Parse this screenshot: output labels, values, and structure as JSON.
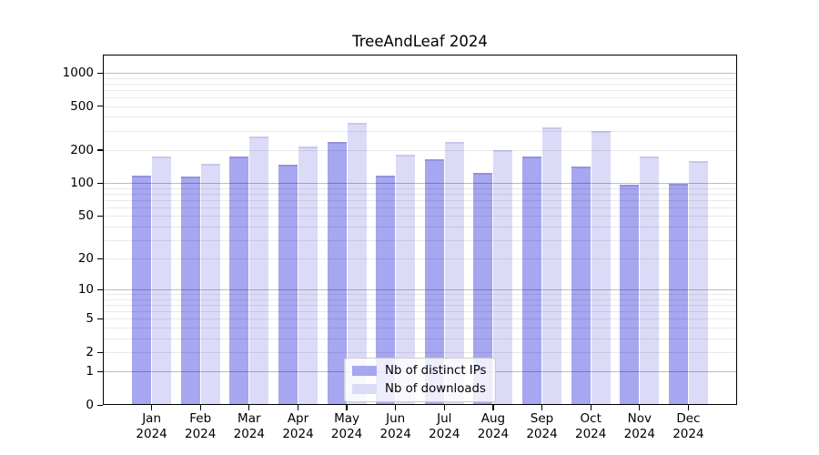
{
  "title": "TreeAndLeaf 2024",
  "chart_data": {
    "type": "bar",
    "title": "TreeAndLeaf 2024",
    "y_scale": "log10(value+1)",
    "grid": true,
    "categories": [
      "Jan",
      "Feb",
      "Mar",
      "Apr",
      "May",
      "Jun",
      "Jul",
      "Aug",
      "Sep",
      "Oct",
      "Nov",
      "Dec"
    ],
    "x_tick_year": "2024",
    "series": [
      {
        "name": "Nb of distinct IPs",
        "color": "#a6a6f1",
        "edge_color": "#9393dc",
        "values": [
          118,
          115,
          173,
          146,
          239,
          116,
          166,
          124,
          175,
          142,
          96,
          98
        ]
      },
      {
        "name": "Nb of downloads",
        "color": "#dbdbf8",
        "edge_color": "#c8c8ed",
        "values": [
          173,
          150,
          265,
          217,
          350,
          180,
          236,
          201,
          322,
          295,
          176,
          160
        ]
      }
    ],
    "y_ticks": [
      1000,
      500,
      200,
      100,
      50,
      20,
      10,
      5,
      2,
      1,
      0
    ],
    "major_gridlines": [
      1,
      10,
      100,
      1000
    ],
    "minor_gridlines": [
      2,
      3,
      4,
      5,
      6,
      7,
      8,
      9,
      20,
      30,
      40,
      50,
      60,
      70,
      80,
      90,
      200,
      300,
      400,
      500,
      600,
      700,
      800,
      900
    ],
    "ylim": [
      0,
      1461
    ],
    "legend": {
      "position": "lower center"
    }
  },
  "colors": {
    "background": "#ffffff",
    "spine": "#000000",
    "text": "#000000",
    "legend_border": "#cccccc"
  }
}
